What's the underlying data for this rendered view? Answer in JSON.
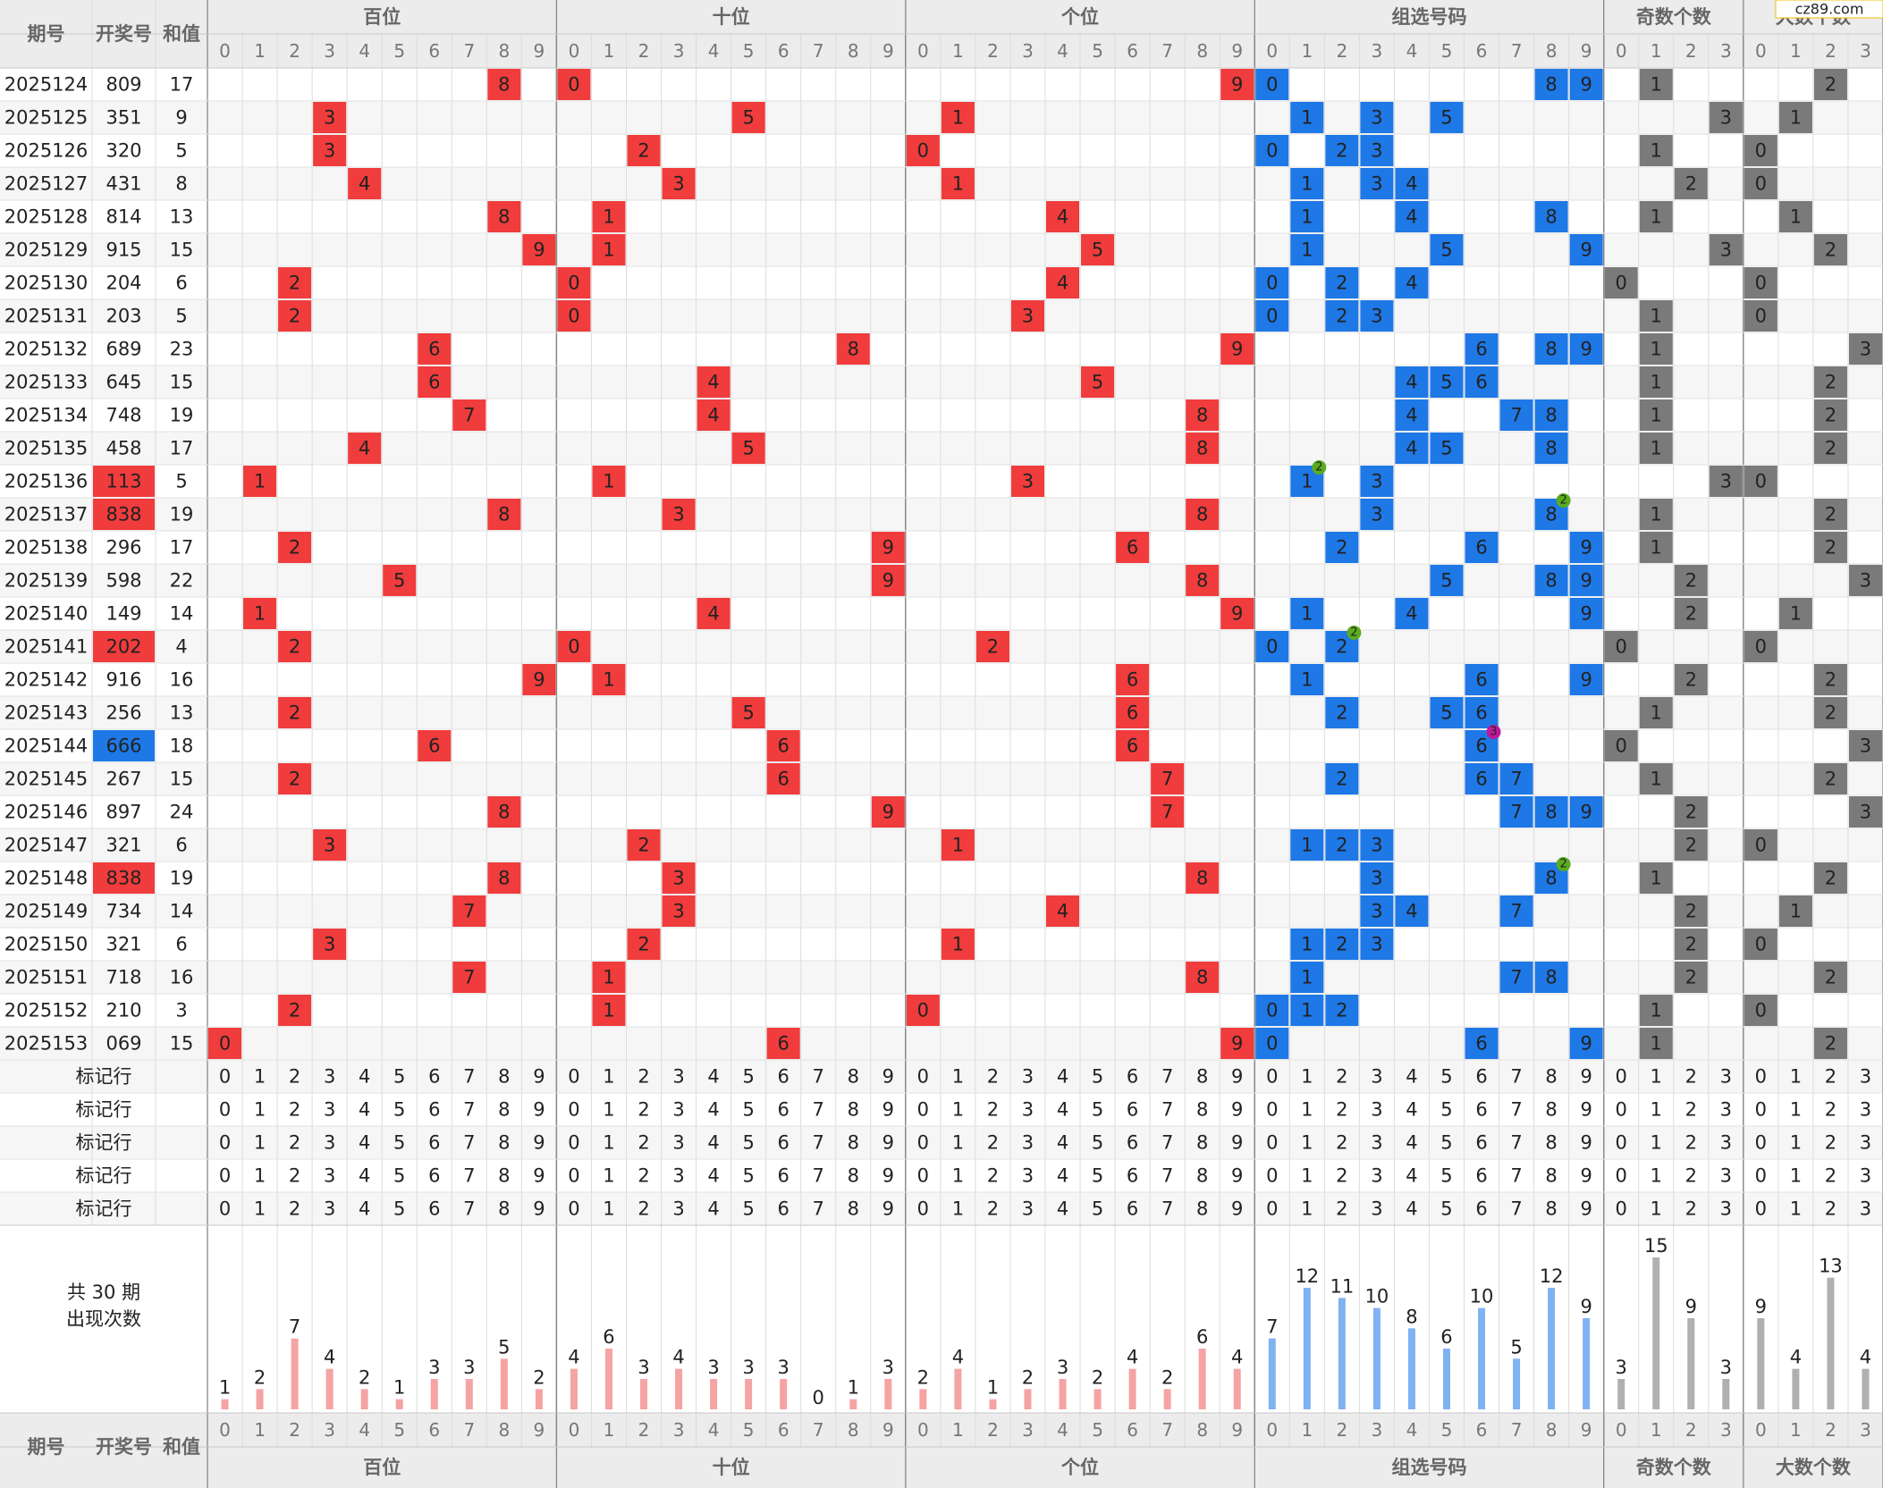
{
  "headers": {
    "period": "期号",
    "number": "开奖号",
    "sum": "和值"
  },
  "watermark": "cz89.com",
  "marker_rows": [
    "标记行",
    "标记行",
    "标记行",
    "标记行",
    "标记行"
  ],
  "stats_title": "共 30 期",
  "stats_subtitle": "出现次数",
  "groups": [
    {
      "title": "百位",
      "digits": [
        0,
        1,
        2,
        3,
        4,
        5,
        6,
        7,
        8,
        9
      ],
      "color": "#f03c3c",
      "bar_color": "#f5a3a3",
      "label_color": "#e03a3a",
      "counts": [
        1,
        2,
        7,
        4,
        2,
        1,
        3,
        3,
        5,
        2
      ]
    },
    {
      "title": "十位",
      "digits": [
        0,
        1,
        2,
        3,
        4,
        5,
        6,
        7,
        8,
        9
      ],
      "color": "#f03c3c",
      "bar_color": "#f5a3a3",
      "label_color": "#e03a3a",
      "counts": [
        4,
        6,
        3,
        4,
        3,
        3,
        3,
        0,
        1,
        3
      ]
    },
    {
      "title": "个位",
      "digits": [
        0,
        1,
        2,
        3,
        4,
        5,
        6,
        7,
        8,
        9
      ],
      "color": "#f03c3c",
      "bar_color": "#f5a3a3",
      "label_color": "#e03a3a",
      "counts": [
        2,
        4,
        1,
        2,
        3,
        2,
        4,
        2,
        6,
        4
      ]
    },
    {
      "title": "组选号码",
      "digits": [
        0,
        1,
        2,
        3,
        4,
        5,
        6,
        7,
        8,
        9
      ],
      "color": "#1e78e6",
      "bar_color": "#7fb2f2",
      "label_color": "#1e6fd0",
      "counts": [
        7,
        12,
        11,
        10,
        8,
        6,
        10,
        5,
        12,
        9
      ]
    },
    {
      "title": "奇数个数",
      "digits": [
        0,
        1,
        2,
        3
      ],
      "color": "#7a7a7a",
      "bar_color": "#b0b0b0",
      "label_color": "#666666",
      "counts": [
        3,
        15,
        9,
        3
      ]
    },
    {
      "title": "大数个数",
      "digits": [
        0,
        1,
        2,
        3
      ],
      "color": "#7a7a7a",
      "bar_color": "#b0b0b0",
      "label_color": "#666666",
      "counts": [
        9,
        4,
        13,
        4
      ]
    }
  ],
  "rows": [
    {
      "period": "2025124",
      "number": "809",
      "sum": 17,
      "picks": [
        [
          8
        ],
        [
          0
        ],
        [
          9
        ],
        [
          0,
          8,
          9
        ],
        [
          1
        ],
        [
          2
        ]
      ]
    },
    {
      "period": "2025125",
      "number": "351",
      "sum": 9,
      "picks": [
        [
          3
        ],
        [
          5
        ],
        [
          1
        ],
        [
          1,
          3,
          5
        ],
        [
          3
        ],
        [
          1
        ]
      ]
    },
    {
      "period": "2025126",
      "number": "320",
      "sum": 5,
      "picks": [
        [
          3
        ],
        [
          2
        ],
        [
          0
        ],
        [
          0,
          2,
          3
        ],
        [
          1
        ],
        [
          0
        ]
      ]
    },
    {
      "period": "2025127",
      "number": "431",
      "sum": 8,
      "picks": [
        [
          4
        ],
        [
          3
        ],
        [
          1
        ],
        [
          1,
          3,
          4
        ],
        [
          2
        ],
        [
          0
        ]
      ]
    },
    {
      "period": "2025128",
      "number": "814",
      "sum": 13,
      "picks": [
        [
          8
        ],
        [
          1
        ],
        [
          4
        ],
        [
          1,
          4,
          8
        ],
        [
          1
        ],
        [
          1
        ]
      ]
    },
    {
      "period": "2025129",
      "number": "915",
      "sum": 15,
      "picks": [
        [
          9
        ],
        [
          1
        ],
        [
          5
        ],
        [
          1,
          5,
          9
        ],
        [
          3
        ],
        [
          2
        ]
      ]
    },
    {
      "period": "2025130",
      "number": "204",
      "sum": 6,
      "picks": [
        [
          2
        ],
        [
          0
        ],
        [
          4
        ],
        [
          0,
          2,
          4
        ],
        [
          0
        ],
        [
          0
        ]
      ]
    },
    {
      "period": "2025131",
      "number": "203",
      "sum": 5,
      "picks": [
        [
          2
        ],
        [
          0
        ],
        [
          3
        ],
        [
          0,
          2,
          3
        ],
        [
          1
        ],
        [
          0
        ]
      ]
    },
    {
      "period": "2025132",
      "number": "689",
      "sum": 23,
      "picks": [
        [
          6
        ],
        [
          8
        ],
        [
          9
        ],
        [
          6,
          8,
          9
        ],
        [
          1
        ],
        [
          3
        ]
      ]
    },
    {
      "period": "2025133",
      "number": "645",
      "sum": 15,
      "picks": [
        [
          6
        ],
        [
          4
        ],
        [
          5
        ],
        [
          4,
          5,
          6
        ],
        [
          1
        ],
        [
          2
        ]
      ]
    },
    {
      "period": "2025134",
      "number": "748",
      "sum": 19,
      "picks": [
        [
          7
        ],
        [
          4
        ],
        [
          8
        ],
        [
          4,
          7,
          8
        ],
        [
          1
        ],
        [
          2
        ]
      ]
    },
    {
      "period": "2025135",
      "number": "458",
      "sum": 17,
      "picks": [
        [
          4
        ],
        [
          5
        ],
        [
          8
        ],
        [
          4,
          5,
          8
        ],
        [
          1
        ],
        [
          2
        ]
      ]
    },
    {
      "period": "2025136",
      "number": "113",
      "sum": 5,
      "picks": [
        [
          1
        ],
        [
          1
        ],
        [
          3
        ],
        [
          1,
          3
        ],
        [
          3
        ],
        [
          0
        ]
      ],
      "number_color": "#f03c3c",
      "repeat_digit": 1,
      "repeat_count": 2,
      "repeat_color": "#5aac1e"
    },
    {
      "period": "2025137",
      "number": "838",
      "sum": 19,
      "picks": [
        [
          8
        ],
        [
          3
        ],
        [
          8
        ],
        [
          3,
          8
        ],
        [
          1
        ],
        [
          2
        ]
      ],
      "number_color": "#f03c3c",
      "repeat_digit": 8,
      "repeat_count": 2,
      "repeat_color": "#5aac1e"
    },
    {
      "period": "2025138",
      "number": "296",
      "sum": 17,
      "picks": [
        [
          2
        ],
        [
          9
        ],
        [
          6
        ],
        [
          2,
          6,
          9
        ],
        [
          1
        ],
        [
          2
        ]
      ]
    },
    {
      "period": "2025139",
      "number": "598",
      "sum": 22,
      "picks": [
        [
          5
        ],
        [
          9
        ],
        [
          8
        ],
        [
          5,
          8,
          9
        ],
        [
          2
        ],
        [
          3
        ]
      ]
    },
    {
      "period": "2025140",
      "number": "149",
      "sum": 14,
      "picks": [
        [
          1
        ],
        [
          4
        ],
        [
          9
        ],
        [
          1,
          4,
          9
        ],
        [
          2
        ],
        [
          1
        ]
      ]
    },
    {
      "period": "2025141",
      "number": "202",
      "sum": 4,
      "picks": [
        [
          2
        ],
        [
          0
        ],
        [
          2
        ],
        [
          0,
          2
        ],
        [
          0
        ],
        [
          0
        ]
      ],
      "number_color": "#f03c3c",
      "repeat_digit": 2,
      "repeat_count": 2,
      "repeat_color": "#5aac1e"
    },
    {
      "period": "2025142",
      "number": "916",
      "sum": 16,
      "picks": [
        [
          9
        ],
        [
          1
        ],
        [
          6
        ],
        [
          1,
          6,
          9
        ],
        [
          2
        ],
        [
          2
        ]
      ]
    },
    {
      "period": "2025143",
      "number": "256",
      "sum": 13,
      "picks": [
        [
          2
        ],
        [
          5
        ],
        [
          6
        ],
        [
          2,
          5,
          6
        ],
        [
          1
        ],
        [
          2
        ]
      ]
    },
    {
      "period": "2025144",
      "number": "666",
      "sum": 18,
      "picks": [
        [
          6
        ],
        [
          6
        ],
        [
          6
        ],
        [
          6
        ],
        [
          0
        ],
        [
          3
        ]
      ],
      "number_color": "#1e78e6",
      "repeat_digit": 6,
      "repeat_count": 3,
      "repeat_color": "#c0189a"
    },
    {
      "period": "2025145",
      "number": "267",
      "sum": 15,
      "picks": [
        [
          2
        ],
        [
          6
        ],
        [
          7
        ],
        [
          2,
          6,
          7
        ],
        [
          1
        ],
        [
          2
        ]
      ]
    },
    {
      "period": "2025146",
      "number": "897",
      "sum": 24,
      "picks": [
        [
          8
        ],
        [
          9
        ],
        [
          7
        ],
        [
          7,
          8,
          9
        ],
        [
          2
        ],
        [
          3
        ]
      ]
    },
    {
      "period": "2025147",
      "number": "321",
      "sum": 6,
      "picks": [
        [
          3
        ],
        [
          2
        ],
        [
          1
        ],
        [
          1,
          2,
          3
        ],
        [
          2
        ],
        [
          0
        ]
      ]
    },
    {
      "period": "2025148",
      "number": "838",
      "sum": 19,
      "picks": [
        [
          8
        ],
        [
          3
        ],
        [
          8
        ],
        [
          3,
          8
        ],
        [
          1
        ],
        [
          2
        ]
      ],
      "number_color": "#f03c3c",
      "repeat_digit": 8,
      "repeat_count": 2,
      "repeat_color": "#5aac1e"
    },
    {
      "period": "2025149",
      "number": "734",
      "sum": 14,
      "picks": [
        [
          7
        ],
        [
          3
        ],
        [
          4
        ],
        [
          3,
          4,
          7
        ],
        [
          2
        ],
        [
          1
        ]
      ]
    },
    {
      "period": "2025150",
      "number": "321",
      "sum": 6,
      "picks": [
        [
          3
        ],
        [
          2
        ],
        [
          1
        ],
        [
          1,
          2,
          3
        ],
        [
          2
        ],
        [
          0
        ]
      ]
    },
    {
      "period": "2025151",
      "number": "718",
      "sum": 16,
      "picks": [
        [
          7
        ],
        [
          1
        ],
        [
          8
        ],
        [
          1,
          7,
          8
        ],
        [
          2
        ],
        [
          2
        ]
      ]
    },
    {
      "period": "2025152",
      "number": "210",
      "sum": 3,
      "picks": [
        [
          2
        ],
        [
          1
        ],
        [
          0
        ],
        [
          0,
          1,
          2
        ],
        [
          1
        ],
        [
          0
        ]
      ]
    },
    {
      "period": "2025153",
      "number": "069",
      "sum": 15,
      "picks": [
        [
          0
        ],
        [
          6
        ],
        [
          9
        ],
        [
          0,
          6,
          9
        ],
        [
          1
        ],
        [
          2
        ]
      ]
    }
  ]
}
